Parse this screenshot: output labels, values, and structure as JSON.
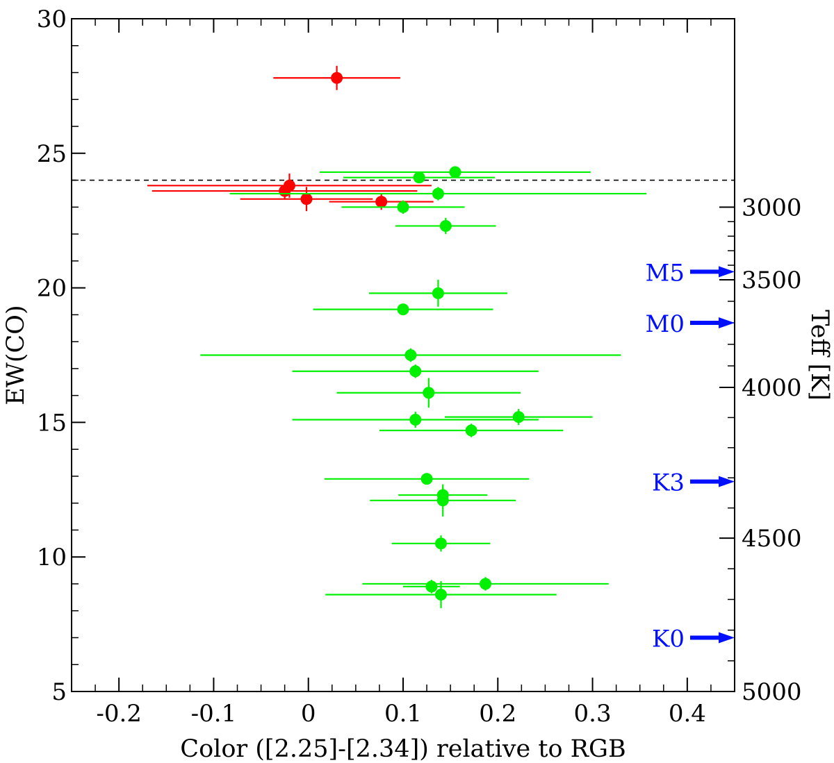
{
  "chart_data": {
    "type": "scatter",
    "title": "",
    "xlabel": "Color ([2.25]-[2.34]) relative to RGB",
    "ylabel": "EW(CO)",
    "y2label": "Teff [K]",
    "xlim": [
      -0.25,
      0.45
    ],
    "ylim": [
      5,
      30
    ],
    "x_ticks": [
      -0.2,
      -0.1,
      0,
      0.1,
      0.2,
      0.3,
      0.4
    ],
    "x_tick_labels": [
      "-0.2",
      "-0.1",
      "0",
      "0.1",
      "0.2",
      "0.3",
      "0.4"
    ],
    "y_ticks": [
      5,
      10,
      15,
      20,
      25,
      30
    ],
    "y_tick_labels": [
      "5",
      "10",
      "15",
      "20",
      "25",
      "30"
    ],
    "teff_ticks": [
      {
        "label": "3000",
        "ew": 23.0
      },
      {
        "label": "3500",
        "ew": 20.3
      },
      {
        "label": "4000",
        "ew": 16.3
      },
      {
        "label": "4500",
        "ew": 10.7
      },
      {
        "label": "5000",
        "ew": 5.0
      }
    ],
    "reference_line": {
      "y": 24.0,
      "style": "dashed"
    },
    "spectral_types": [
      {
        "label": "M5",
        "ew": 20.6
      },
      {
        "label": "M0",
        "ew": 18.7
      },
      {
        "label": "K3",
        "ew": 12.8
      },
      {
        "label": "K0",
        "ew": 7.0
      }
    ],
    "series": [
      {
        "color": "#ff0000",
        "points": [
          {
            "x": 0.03,
            "y": 27.8,
            "xerr": 0.067,
            "yerr": 0.45
          },
          {
            "x": -0.02,
            "y": 23.8,
            "xerr": 0.15,
            "yerr": 0.45
          },
          {
            "x": -0.025,
            "y": 23.6,
            "xerr": 0.14,
            "yerr": 0.3
          },
          {
            "x": -0.002,
            "y": 23.3,
            "xerr": 0.07,
            "yerr": 0.45
          },
          {
            "x": 0.077,
            "y": 23.2,
            "xerr": 0.055,
            "yerr": 0.3
          }
        ]
      },
      {
        "color": "#00f000",
        "points": [
          {
            "x": 0.155,
            "y": 24.3,
            "xerr": 0.143,
            "yerr": 0.2
          },
          {
            "x": 0.117,
            "y": 24.1,
            "xerr": 0.08,
            "yerr": 0.2
          },
          {
            "x": 0.137,
            "y": 23.5,
            "xerr": 0.22,
            "yerr": 0.25
          },
          {
            "x": 0.1,
            "y": 23.0,
            "xerr": 0.065,
            "yerr": 0.25
          },
          {
            "x": 0.145,
            "y": 22.3,
            "xerr": 0.053,
            "yerr": 0.3
          },
          {
            "x": 0.137,
            "y": 19.8,
            "xerr": 0.073,
            "yerr": 0.5
          },
          {
            "x": 0.1,
            "y": 19.2,
            "xerr": 0.095,
            "yerr": 0.2
          },
          {
            "x": 0.108,
            "y": 17.5,
            "xerr": 0.222,
            "yerr": 0.25
          },
          {
            "x": 0.113,
            "y": 16.9,
            "xerr": 0.13,
            "yerr": 0.25
          },
          {
            "x": 0.127,
            "y": 16.1,
            "xerr": 0.097,
            "yerr": 0.55
          },
          {
            "x": 0.222,
            "y": 15.2,
            "xerr": 0.078,
            "yerr": 0.3
          },
          {
            "x": 0.113,
            "y": 15.1,
            "xerr": 0.13,
            "yerr": 0.3
          },
          {
            "x": 0.172,
            "y": 14.7,
            "xerr": 0.097,
            "yerr": 0.25
          },
          {
            "x": 0.125,
            "y": 12.9,
            "xerr": 0.108,
            "yerr": 0.2
          },
          {
            "x": 0.142,
            "y": 12.3,
            "xerr": 0.047,
            "yerr": 0.3
          },
          {
            "x": 0.142,
            "y": 12.1,
            "xerr": 0.077,
            "yerr": 0.6
          },
          {
            "x": 0.14,
            "y": 10.5,
            "xerr": 0.052,
            "yerr": 0.3
          },
          {
            "x": 0.187,
            "y": 9.0,
            "xerr": 0.13,
            "yerr": 0.25
          },
          {
            "x": 0.13,
            "y": 8.9,
            "xerr": 0.03,
            "yerr": 0.25
          },
          {
            "x": 0.14,
            "y": 8.6,
            "xerr": 0.122,
            "yerr": 0.5
          }
        ]
      }
    ]
  }
}
